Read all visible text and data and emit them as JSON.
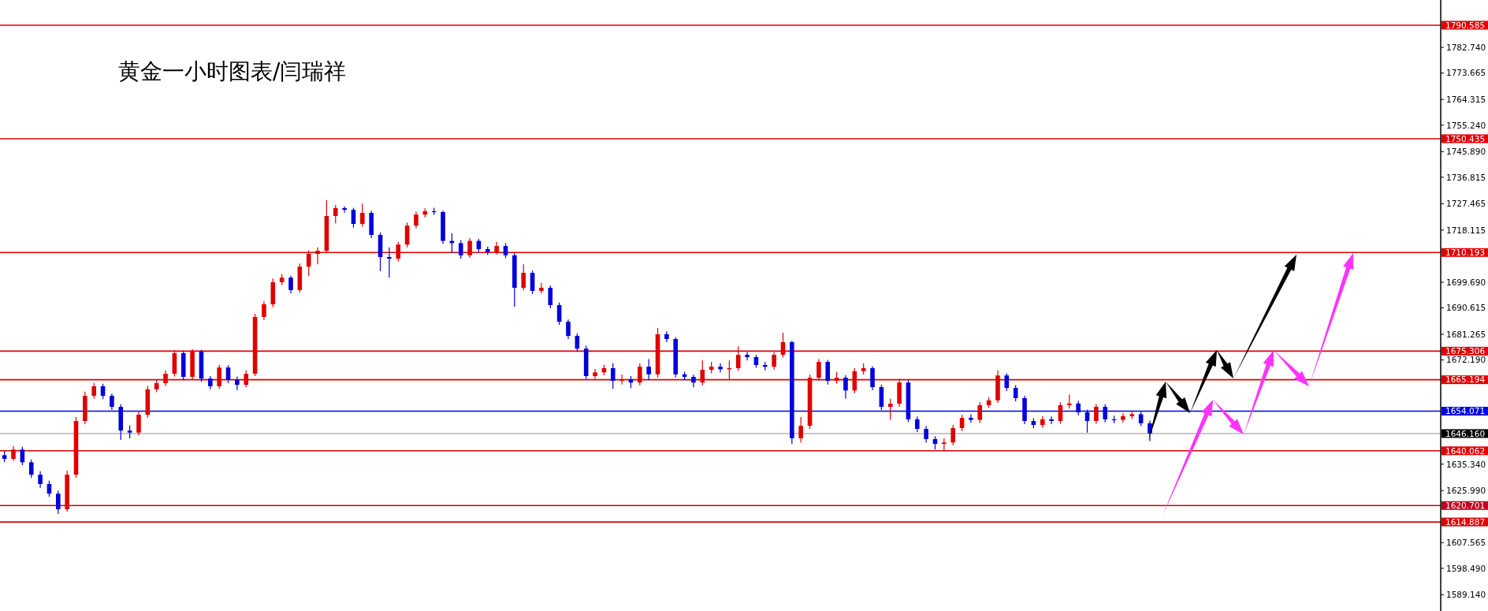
{
  "chart_data": {
    "type": "candlestick",
    "title": "黄金一小时图表/闫瑞祥",
    "categories": [
      null,
      null,
      null,
      null,
      null,
      null,
      null,
      null,
      null,
      null,
      null,
      null,
      null,
      null,
      null,
      null,
      null,
      null,
      null,
      null,
      null,
      null,
      null,
      null,
      null,
      null,
      null,
      null,
      null,
      null,
      null,
      null,
      null,
      null,
      null,
      null,
      null,
      null,
      null,
      null,
      null,
      null,
      null,
      null,
      null,
      null,
      null,
      null,
      null,
      null,
      null,
      null,
      null,
      null,
      null,
      null,
      null,
      null,
      null,
      null,
      null,
      null,
      null,
      null,
      null,
      null,
      null,
      null,
      null,
      null,
      null,
      null,
      null,
      null,
      null,
      null,
      null,
      null,
      null,
      null,
      null,
      null,
      null,
      null,
      null,
      null,
      null,
      null,
      null,
      null,
      null,
      null,
      null,
      null,
      null,
      null,
      null,
      null,
      null,
      null,
      null,
      null,
      null,
      null,
      null,
      null,
      null,
      null,
      null,
      null,
      null,
      null,
      null,
      null,
      null,
      null,
      null,
      null,
      null,
      null,
      null,
      null,
      null,
      null,
      null,
      null,
      null,
      null,
      null,
      null,
      null,
      null,
      null,
      null,
      null,
      null,
      null,
      null,
      null,
      null,
      null,
      null,
      null,
      null,
      null,
      null,
      null,
      null,
      null,
      null,
      null,
      null,
      null,
      null,
      null,
      null,
      null,
      null,
      null,
      null,
      null
    ],
    "ohlc": [
      [
        1638.5,
        1640.0,
        1636.0,
        1637.2
      ],
      [
        1637.2,
        1641.8,
        1636.5,
        1640.5
      ],
      [
        1640.5,
        1641.5,
        1635.0,
        1636.0
      ],
      [
        1636.0,
        1637.0,
        1630.5,
        1631.6
      ],
      [
        1631.6,
        1632.8,
        1627.0,
        1628.3
      ],
      [
        1628.3,
        1629.5,
        1623.8,
        1624.9
      ],
      [
        1624.9,
        1626.0,
        1617.7,
        1619.4
      ],
      [
        1619.4,
        1633.0,
        1618.5,
        1631.6
      ],
      [
        1631.6,
        1652.0,
        1630.5,
        1650.6
      ],
      [
        1650.6,
        1661.0,
        1649.5,
        1659.5
      ],
      [
        1659.5,
        1664.0,
        1658.5,
        1662.9
      ],
      [
        1662.9,
        1663.8,
        1658.3,
        1659.5
      ],
      [
        1659.5,
        1660.3,
        1654.5,
        1655.6
      ],
      [
        1655.6,
        1656.5,
        1643.9,
        1647.2
      ],
      [
        1647.2,
        1649.0,
        1644.5,
        1646.5
      ],
      [
        1646.5,
        1654.0,
        1645.5,
        1652.8
      ],
      [
        1652.8,
        1663.0,
        1651.8,
        1661.8
      ],
      [
        1661.8,
        1665.2,
        1660.8,
        1664.0
      ],
      [
        1664.0,
        1668.5,
        1663.0,
        1667.3
      ],
      [
        1667.3,
        1675.7,
        1666.3,
        1674.6
      ],
      [
        1674.6,
        1675.3,
        1665.0,
        1666.2
      ],
      [
        1666.2,
        1676.0,
        1665.2,
        1675.1
      ],
      [
        1675.1,
        1675.8,
        1664.5,
        1665.6
      ],
      [
        1665.6,
        1666.5,
        1661.8,
        1662.9
      ],
      [
        1662.9,
        1670.5,
        1662.0,
        1669.5
      ],
      [
        1669.5,
        1670.3,
        1664.0,
        1665.1
      ],
      [
        1665.1,
        1666.3,
        1661.5,
        1663.4
      ],
      [
        1663.4,
        1668.5,
        1662.5,
        1667.3
      ],
      [
        1667.3,
        1688.5,
        1666.5,
        1687.4
      ],
      [
        1687.4,
        1693.0,
        1686.3,
        1691.9
      ],
      [
        1691.9,
        1701.0,
        1690.8,
        1699.7
      ],
      [
        1699.7,
        1702.5,
        1698.7,
        1701.3
      ],
      [
        1701.3,
        1702.0,
        1695.8,
        1696.9
      ],
      [
        1696.9,
        1706.3,
        1696.0,
        1705.2
      ],
      [
        1705.2,
        1711.0,
        1701.9,
        1709.7
      ],
      [
        1709.7,
        1712.0,
        1706.0,
        1710.8
      ],
      [
        1710.8,
        1728.7,
        1710.0,
        1723.1
      ],
      [
        1723.1,
        1727.0,
        1720.5,
        1725.9
      ],
      [
        1725.9,
        1726.5,
        1724.3,
        1725.3
      ],
      [
        1725.3,
        1726.0,
        1719.0,
        1720.3
      ],
      [
        1720.3,
        1727.5,
        1719.3,
        1724.2
      ],
      [
        1724.2,
        1725.0,
        1715.3,
        1716.4
      ],
      [
        1716.4,
        1717.3,
        1703.6,
        1708.6
      ],
      [
        1708.6,
        1712.0,
        1701.3,
        1708.0
      ],
      [
        1708.0,
        1714.0,
        1707.0,
        1713.0
      ],
      [
        1713.0,
        1720.8,
        1712.0,
        1719.7
      ],
      [
        1719.7,
        1724.6,
        1718.8,
        1723.6
      ],
      [
        1723.6,
        1725.8,
        1722.6,
        1724.8
      ],
      [
        1724.8,
        1726.0,
        1723.5,
        1724.5
      ],
      [
        1724.5,
        1725.0,
        1713.2,
        1714.3
      ],
      [
        1714.3,
        1717.0,
        1710.0,
        1713.5
      ],
      [
        1713.5,
        1714.5,
        1708.0,
        1709.2
      ],
      [
        1709.2,
        1715.3,
        1708.3,
        1714.3
      ],
      [
        1714.3,
        1715.0,
        1710.4,
        1711.4
      ],
      [
        1711.4,
        1712.3,
        1709.3,
        1710.3
      ],
      [
        1710.3,
        1714.0,
        1709.5,
        1712.5
      ],
      [
        1712.5,
        1713.5,
        1708.2,
        1709.2
      ],
      [
        1709.2,
        1710.0,
        1691.0,
        1697.7
      ],
      [
        1697.7,
        1706.0,
        1696.8,
        1703.0
      ],
      [
        1703.0,
        1703.8,
        1695.5,
        1696.6
      ],
      [
        1696.6,
        1699.5,
        1695.7,
        1697.7
      ],
      [
        1697.7,
        1698.5,
        1690.5,
        1691.6
      ],
      [
        1691.6,
        1692.5,
        1684.6,
        1685.7
      ],
      [
        1685.7,
        1686.5,
        1679.6,
        1680.7
      ],
      [
        1680.7,
        1681.6,
        1675.2,
        1676.2
      ],
      [
        1676.2,
        1677.2,
        1665.5,
        1666.5
      ],
      [
        1666.5,
        1669.0,
        1665.5,
        1667.8
      ],
      [
        1667.8,
        1670.5,
        1666.8,
        1669.3
      ],
      [
        1669.3,
        1671.0,
        1662.0,
        1664.8
      ],
      [
        1664.8,
        1667.0,
        1663.5,
        1665.3
      ],
      [
        1665.3,
        1666.5,
        1662.2,
        1664.2
      ],
      [
        1664.2,
        1671.0,
        1663.2,
        1669.8
      ],
      [
        1669.8,
        1672.5,
        1665.0,
        1667.1
      ],
      [
        1667.1,
        1683.5,
        1666.0,
        1681.3
      ],
      [
        1681.3,
        1682.3,
        1678.5,
        1679.6
      ],
      [
        1679.6,
        1680.3,
        1666.0,
        1667.1
      ],
      [
        1667.1,
        1668.0,
        1665.0,
        1666.2
      ],
      [
        1666.2,
        1667.0,
        1662.5,
        1664.2
      ],
      [
        1664.2,
        1672.0,
        1663.2,
        1668.7
      ],
      [
        1668.7,
        1671.5,
        1667.5,
        1669.8
      ],
      [
        1669.8,
        1671.0,
        1667.8,
        1668.9
      ],
      [
        1668.9,
        1672.0,
        1665.0,
        1669.3
      ],
      [
        1669.3,
        1677.0,
        1668.3,
        1674.0
      ],
      [
        1674.0,
        1675.0,
        1672.0,
        1673.2
      ],
      [
        1673.2,
        1674.0,
        1669.4,
        1670.4
      ],
      [
        1670.4,
        1671.5,
        1668.5,
        1669.8
      ],
      [
        1669.8,
        1675.0,
        1668.8,
        1674.0
      ],
      [
        1674.0,
        1681.8,
        1673.0,
        1678.5
      ],
      [
        1678.5,
        1679.0,
        1642.5,
        1644.5
      ],
      [
        1644.5,
        1652.0,
        1643.0,
        1648.9
      ],
      [
        1648.9,
        1667.0,
        1647.8,
        1665.9
      ],
      [
        1665.9,
        1672.5,
        1664.8,
        1671.5
      ],
      [
        1671.5,
        1672.2,
        1663.5,
        1664.8
      ],
      [
        1664.8,
        1668.0,
        1663.8,
        1665.9
      ],
      [
        1665.9,
        1666.8,
        1658.5,
        1661.4
      ],
      [
        1661.4,
        1669.3,
        1660.4,
        1668.2
      ],
      [
        1668.2,
        1671.0,
        1667.0,
        1669.3
      ],
      [
        1669.3,
        1670.0,
        1661.5,
        1662.6
      ],
      [
        1662.6,
        1663.5,
        1654.5,
        1655.6
      ],
      [
        1655.6,
        1658.5,
        1651.0,
        1656.7
      ],
      [
        1656.7,
        1665.5,
        1655.7,
        1664.2
      ],
      [
        1664.2,
        1665.0,
        1650.2,
        1651.2
      ],
      [
        1651.2,
        1652.2,
        1646.7,
        1647.8
      ],
      [
        1647.8,
        1648.8,
        1643.0,
        1644.2
      ],
      [
        1644.2,
        1645.2,
        1640.5,
        1642.5
      ],
      [
        1642.5,
        1644.5,
        1640.3,
        1643.0
      ],
      [
        1643.0,
        1649.2,
        1642.0,
        1648.1
      ],
      [
        1648.1,
        1652.8,
        1647.0,
        1651.7
      ],
      [
        1651.7,
        1653.0,
        1650.0,
        1651.0
      ],
      [
        1651.0,
        1657.3,
        1650.0,
        1656.2
      ],
      [
        1656.2,
        1659.0,
        1655.2,
        1657.9
      ],
      [
        1657.9,
        1668.5,
        1657.0,
        1666.7
      ],
      [
        1666.7,
        1667.5,
        1661.2,
        1662.3
      ],
      [
        1662.3,
        1663.3,
        1657.6,
        1658.7
      ],
      [
        1658.7,
        1659.5,
        1649.5,
        1650.6
      ],
      [
        1650.6,
        1651.6,
        1648.0,
        1649.2
      ],
      [
        1649.2,
        1652.3,
        1648.2,
        1651.2
      ],
      [
        1651.2,
        1652.2,
        1649.5,
        1650.6
      ],
      [
        1650.6,
        1657.2,
        1649.6,
        1656.2
      ],
      [
        1656.2,
        1660.0,
        1655.0,
        1656.8
      ],
      [
        1656.8,
        1657.8,
        1652.6,
        1653.7
      ],
      [
        1653.7,
        1654.6,
        1646.5,
        1650.6
      ],
      [
        1650.6,
        1656.6,
        1649.6,
        1655.6
      ],
      [
        1655.6,
        1656.5,
        1650.1,
        1651.2
      ],
      [
        1651.2,
        1652.5,
        1649.8,
        1651.0
      ],
      [
        1651.0,
        1653.4,
        1650.0,
        1652.3
      ],
      [
        1652.3,
        1654.3,
        1651.3,
        1653.0
      ],
      [
        1653.0,
        1654.0,
        1648.8,
        1649.8
      ],
      [
        1649.8,
        1650.8,
        1643.5,
        1646.2
      ],
      null,
      null,
      null,
      null,
      null,
      null,
      null,
      null,
      null,
      null,
      null,
      null,
      null,
      null,
      null,
      null,
      null,
      null,
      null,
      null,
      null,
      null,
      null,
      null,
      null,
      null,
      null,
      null,
      null,
      null,
      null,
      null
    ],
    "colors": [
      "#0000dd",
      "#e00000",
      "#0000dd",
      "#0000dd",
      "#0000dd",
      "#0000dd",
      "#0000dd",
      "#e00000",
      "#e00000",
      "#e00000",
      "#e00000",
      "#0000dd",
      "#0000dd",
      "#0000dd",
      "#0000dd",
      "#e00000",
      "#e00000",
      "#e00000",
      "#e00000",
      "#e00000",
      "#0000dd",
      "#e00000",
      "#0000dd",
      "#0000dd",
      "#e00000",
      "#0000dd",
      "#0000dd",
      "#e00000",
      "#e00000",
      "#e00000",
      "#e00000",
      "#e00000",
      "#0000dd",
      "#e00000",
      "#e00000",
      "#e00000",
      "#e00000",
      "#e00000",
      "#0000dd",
      "#0000dd",
      "#e00000",
      "#0000dd",
      "#0000dd",
      "#0000dd",
      "#e00000",
      "#e00000",
      "#e00000",
      "#e00000",
      "#0000dd",
      "#0000dd",
      "#0000dd",
      "#0000dd",
      "#e00000",
      "#0000dd",
      "#0000dd",
      "#e00000",
      "#0000dd",
      "#0000dd",
      "#e00000",
      "#0000dd",
      "#e00000",
      "#0000dd",
      "#0000dd",
      "#0000dd",
      "#0000dd",
      "#0000dd",
      "#e00000",
      "#e00000",
      "#0000dd",
      "#e00000",
      "#0000dd",
      "#e00000",
      "#0000dd",
      "#e00000",
      "#0000dd",
      "#0000dd",
      "#0000dd",
      "#0000dd",
      "#e00000",
      "#e00000",
      "#0000dd",
      "#e00000",
      "#e00000",
      "#0000dd",
      "#0000dd",
      "#0000dd",
      "#e00000",
      "#e00000",
      "#0000dd",
      "#e00000",
      "#e00000",
      "#e00000",
      "#0000dd",
      "#e00000",
      "#0000dd",
      "#e00000",
      "#e00000",
      "#0000dd",
      "#0000dd",
      "#e00000",
      "#e00000",
      "#0000dd",
      "#0000dd",
      "#0000dd",
      "#0000dd",
      "#e00000",
      "#e00000",
      "#e00000",
      "#0000dd",
      "#e00000",
      "#e00000",
      "#e00000",
      "#0000dd",
      "#0000dd",
      "#0000dd",
      "#0000dd",
      "#e00000",
      "#0000dd",
      "#e00000",
      "#e00000",
      "#0000dd",
      "#0000dd",
      "#e00000",
      "#0000dd",
      "#0000dd",
      "#e00000",
      "#e00000",
      "#0000dd",
      "#0000dd",
      null,
      null,
      null,
      null,
      null,
      null,
      null,
      null,
      null,
      null,
      null,
      null,
      null,
      null,
      null,
      null,
      null,
      null,
      null,
      null,
      null,
      null,
      null,
      null,
      null,
      null,
      null,
      null,
      null,
      null,
      null,
      null
    ],
    "ylim": [
      1583.4,
      1799.5
    ],
    "yticks": [
      {
        "value": 1589.14,
        "label": "1589.140"
      },
      {
        "value": 1598.49,
        "label": "1598.490"
      },
      {
        "value": 1607.565,
        "label": "1607.565"
      },
      {
        "value": 1625.99,
        "label": "1625.990"
      },
      {
        "value": 1635.34,
        "label": "1635.340"
      },
      {
        "value": 1672.19,
        "label": "1672.190"
      },
      {
        "value": 1681.265,
        "label": "1681.265"
      },
      {
        "value": 1690.615,
        "label": "1690.615"
      },
      {
        "value": 1699.69,
        "label": "1699.690"
      },
      {
        "value": 1718.115,
        "label": "1718.115"
      },
      {
        "value": 1727.465,
        "label": "1727.465"
      },
      {
        "value": 1736.815,
        "label": "1736.815"
      },
      {
        "value": 1745.89,
        "label": "1745.890"
      },
      {
        "value": 1755.24,
        "label": "1755.240"
      },
      {
        "value": 1764.315,
        "label": "1764.315"
      },
      {
        "value": 1773.665,
        "label": "1773.665"
      },
      {
        "value": 1782.74,
        "label": "1782.740"
      }
    ],
    "tick_labels": "y",
    "ref_lines": [
      {
        "axis": "y",
        "value": 1790.585,
        "label": "1790.585",
        "color": "#e00000"
      },
      {
        "axis": "y",
        "value": 1750.435,
        "label": "1750.435",
        "color": "#e00000"
      },
      {
        "axis": "y",
        "value": 1710.193,
        "label": "1710.193",
        "color": "#e00000"
      },
      {
        "axis": "y",
        "value": 1675.306,
        "label": "1675.306",
        "color": "#e00000"
      },
      {
        "axis": "y",
        "value": 1665.194,
        "label": "1665.194",
        "color": "#e00000"
      },
      {
        "axis": "y",
        "value": 1654.071,
        "label": "1654.071",
        "color": "#0000e6"
      },
      {
        "axis": "y",
        "value": 1646.16,
        "label": "1646.160",
        "color": "#c0c0c0"
      },
      {
        "axis": "y",
        "value": 1640.062,
        "label": "1640.062",
        "color": "#e00000"
      },
      {
        "axis": "y",
        "value": 1620.701,
        "label": "1620.701",
        "color": "#c00020"
      },
      {
        "axis": "y",
        "value": 1614.887,
        "label": "1614.887",
        "color": "#e00000"
      }
    ]
  }
}
